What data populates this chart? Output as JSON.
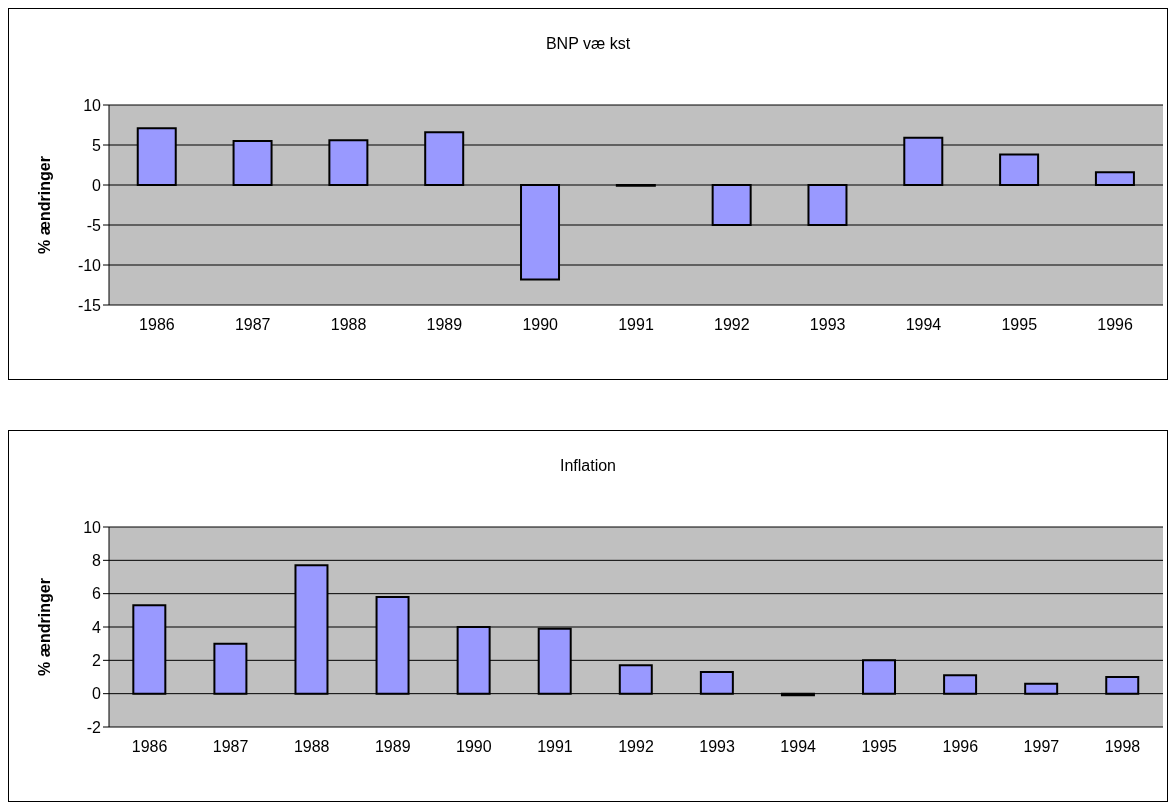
{
  "chart_data": [
    {
      "type": "bar",
      "title": "BNP væ kst",
      "ylabel": "% ændringer",
      "categories": [
        "1986",
        "1987",
        "1988",
        "1989",
        "1990",
        "1991",
        "1992",
        "1993",
        "1994",
        "1995",
        "1996"
      ],
      "series": [
        {
          "color": "#9999ff",
          "values": [
            7.1,
            5.5,
            5.6,
            6.6,
            -11.8,
            -0.1,
            -5.0,
            -5.0,
            5.9,
            3.8,
            1.6
          ]
        }
      ],
      "ylim": [
        -15,
        10
      ],
      "yticks": [
        -15,
        -10,
        -5,
        0,
        5,
        10
      ],
      "grid": "y",
      "legend": false
    },
    {
      "type": "bar",
      "title": "Inflation",
      "ylabel": "% ændringer",
      "categories": [
        "1986",
        "1987",
        "1988",
        "1989",
        "1990",
        "1991",
        "1992",
        "1993",
        "1994",
        "1995",
        "1996",
        "1997",
        "1998"
      ],
      "series": [
        {
          "color": "#9999ff",
          "values": [
            5.3,
            3.0,
            7.7,
            5.8,
            4.0,
            3.9,
            1.7,
            1.3,
            -0.1,
            2.0,
            1.1,
            0.6,
            1.0
          ]
        }
      ],
      "ylim": [
        -2,
        10
      ],
      "yticks": [
        -2,
        0,
        2,
        4,
        6,
        8,
        10
      ],
      "grid": "y",
      "legend": false
    }
  ]
}
